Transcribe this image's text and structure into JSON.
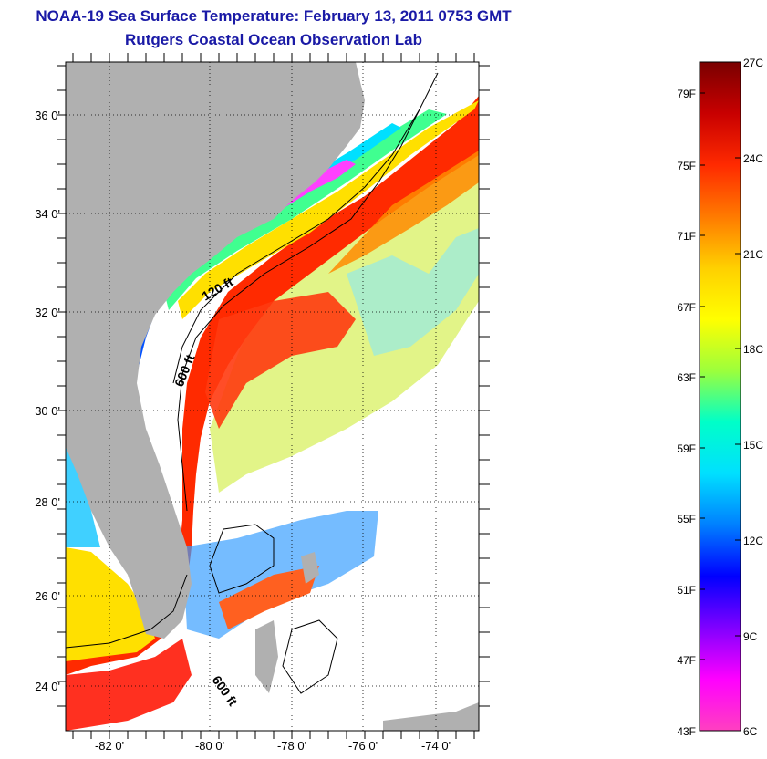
{
  "title": {
    "line1": "NOAA-19 Sea Surface Temperature:  February 13, 2011 0753 GMT",
    "line2": "Rutgers Coastal Ocean Observation Lab"
  },
  "map": {
    "lon_labels": [
      "-82 0'",
      "-80 0'",
      "-78 0'",
      "-76 0'",
      "-74 0'"
    ],
    "lat_labels": [
      "36 0'",
      "34 0'",
      "32 0'",
      "30 0'",
      "28 0'",
      "26 0'",
      "24 0'"
    ],
    "contour_labels": {
      "shelf_120": "120 ft",
      "shelf_600_north": "600 ft",
      "shelf_600_south": "600 ft"
    },
    "colors": {
      "land": "#b0b0b0",
      "no_data": "#ffffff",
      "contour": "#000000"
    }
  },
  "colorbar": {
    "fahrenheit_labels": [
      "79F",
      "75F",
      "71F",
      "67F",
      "63F",
      "59F",
      "55F",
      "51F",
      "47F",
      "43F"
    ],
    "celsius_labels": [
      "27C",
      "24C",
      "21C",
      "18C",
      "15C",
      "12C",
      "9C",
      "6C"
    ],
    "gradient": [
      "#7a0000",
      "#c80000",
      "#ff2a00",
      "#ff7a00",
      "#ffd000",
      "#ffff00",
      "#9cff3c",
      "#00ffc8",
      "#00e0ff",
      "#0080ff",
      "#0000ff",
      "#8000ff",
      "#ff00ff",
      "#ff40c0"
    ]
  }
}
